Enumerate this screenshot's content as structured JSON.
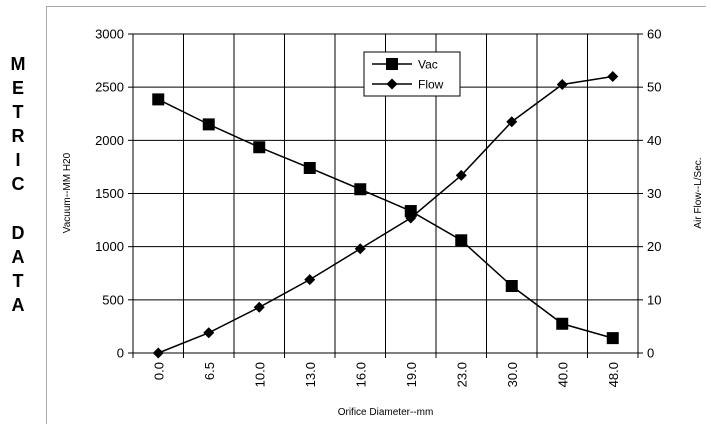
{
  "side_label": [
    "M",
    "E",
    "T",
    "R",
    "I",
    "C",
    "",
    "D",
    "A",
    "T",
    "A"
  ],
  "chart_data": {
    "type": "line",
    "categories": [
      "0.0",
      "6.5",
      "10.0",
      "13.0",
      "16.0",
      "19.0",
      "23.0",
      "30.0",
      "40.0",
      "48.0"
    ],
    "xlabel": "Orifice Diameter--mm",
    "ylabel": "Vacuum--MM H20",
    "y2label": "Air Flow--L/Sec.",
    "ylim": [
      0,
      3000
    ],
    "y2lim": [
      0,
      60
    ],
    "yticks": [
      0,
      500,
      1000,
      1500,
      2000,
      2500,
      3000
    ],
    "y2ticks": [
      0,
      10,
      20,
      30,
      40,
      50,
      60
    ],
    "grid": true,
    "legend_position": "top-center",
    "series": [
      {
        "name": "Vac",
        "axis": "left",
        "marker": "square",
        "values": [
          2385,
          2150,
          1935,
          1740,
          1540,
          1335,
          1060,
          630,
          275,
          140
        ]
      },
      {
        "name": "Flow",
        "axis": "right",
        "marker": "diamond",
        "values": [
          0,
          3.8,
          8.6,
          13.8,
          19.6,
          25.4,
          33.4,
          43.5,
          50.5,
          52.0
        ]
      }
    ],
    "colors": {
      "line": "#000000",
      "grid": "#000000",
      "plot_bg": "#ffffff"
    }
  }
}
